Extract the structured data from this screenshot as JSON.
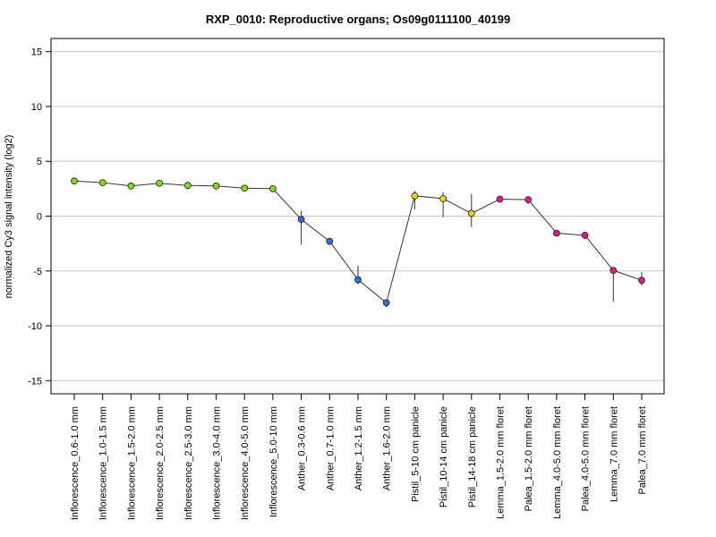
{
  "chart_data": {
    "type": "line",
    "title": "RXP_0010: Reproductive organs; Os09g0111100_40199",
    "xlabel": "",
    "ylabel": "normalized Cy3 signal intensity (log2)",
    "ylim": [
      -16.2,
      16.2
    ],
    "yticks": [
      -15,
      -10,
      -5,
      0,
      5,
      10,
      15
    ],
    "grid": true,
    "categories": [
      "Inflorescence_0.6-1.0 mm",
      "Inflorescence_1.0-1.5 mm",
      "Inflorescence_1.5-2.0 mm",
      "Inflorescence_2.0-2.5 mm",
      "Inflorescence_2.5-3.0 mm",
      "Inflorescence_3.0-4.0 mm",
      "Inflorescence_4.0-5.0 mm",
      "Inflorescence_5.0-10 mm",
      "Anther_0.3-0.6 mm",
      "Anther_0.7-1.0 mm",
      "Anther_1.2-1.5 mm",
      "Anther_1.6-2.0 mm",
      "Pistil_5-10 cm panicle",
      "Pistil_10-14 cm panicle",
      "Pistil_14-18 cm panicle",
      "Lemma_1.5-2.0 mm floret",
      "Palea_1.5-2.0 mm floret",
      "Lemma_4.0-5.0 mm floret",
      "Palea_4.0-5.0 mm floret",
      "Lemma_7.0 mm floret",
      "Palea_7.0 mm floret"
    ],
    "values": [
      3.2,
      3.05,
      2.75,
      3.0,
      2.8,
      2.75,
      2.55,
      2.5,
      -0.3,
      -2.3,
      -5.8,
      -7.9,
      1.85,
      1.6,
      0.25,
      1.55,
      1.5,
      -1.55,
      -1.75,
      -4.95,
      -5.85
    ],
    "error_low": [
      3.05,
      2.95,
      2.6,
      2.85,
      2.45,
      2.6,
      2.4,
      2.35,
      -2.6,
      -2.5,
      -6.2,
      -8.3,
      0.6,
      -0.1,
      -1.0,
      1.4,
      1.1,
      -1.7,
      -2.0,
      -7.8,
      -6.3
    ],
    "error_high": [
      3.35,
      3.15,
      2.9,
      3.15,
      3.15,
      2.9,
      2.7,
      2.65,
      0.5,
      -2.1,
      -4.5,
      -7.6,
      2.3,
      2.2,
      2.0,
      1.7,
      1.75,
      -1.4,
      -1.5,
      -4.8,
      -5.1
    ],
    "point_colors": [
      "#7ddc1e",
      "#7ddc1e",
      "#7ddc1e",
      "#7ddc1e",
      "#7ddc1e",
      "#7ddc1e",
      "#7ddc1e",
      "#7ddc1e",
      "#2f6fe0",
      "#2f6fe0",
      "#2f6fe0",
      "#2f6fe0",
      "#f2d21b",
      "#f2d21b",
      "#f2d21b",
      "#d81b8f",
      "#d81b8f",
      "#d81b8f",
      "#d81b8f",
      "#d81b8f",
      "#d81b8f"
    ],
    "line_color": "#333333",
    "grid_color": "#c8c8c8",
    "marker": "filled-circle"
  }
}
